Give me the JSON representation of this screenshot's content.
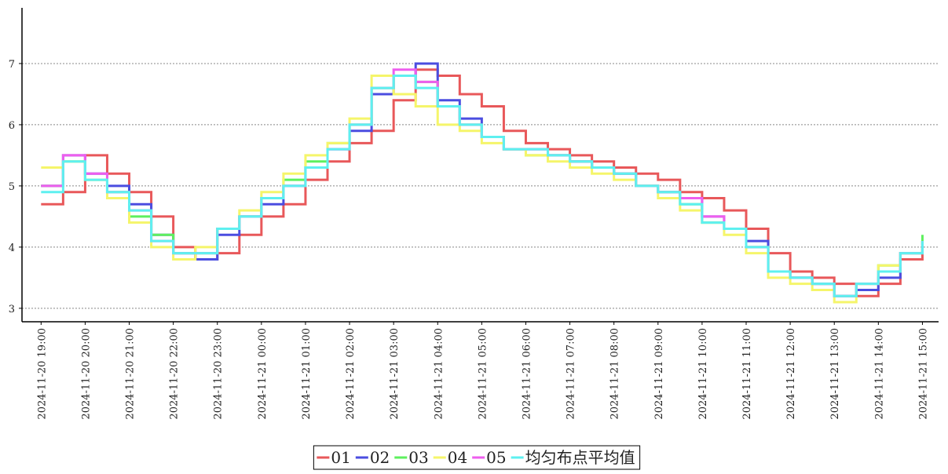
{
  "chart_data": {
    "type": "step-line",
    "x": [
      "2024-11-20 19:00",
      "2024-11-20 19:30",
      "2024-11-20 20:00",
      "2024-11-20 20:30",
      "2024-11-20 21:00",
      "2024-11-20 21:30",
      "2024-11-20 22:00",
      "2024-11-20 22:30",
      "2024-11-20 23:00",
      "2024-11-20 23:30",
      "2024-11-21 00:00",
      "2024-11-21 00:30",
      "2024-11-21 01:00",
      "2024-11-21 01:30",
      "2024-11-21 02:00",
      "2024-11-21 02:30",
      "2024-11-21 03:00",
      "2024-11-21 03:30",
      "2024-11-21 04:00",
      "2024-11-21 04:30",
      "2024-11-21 05:00",
      "2024-11-21 05:30",
      "2024-11-21 06:00",
      "2024-11-21 06:30",
      "2024-11-21 07:00",
      "2024-11-21 07:30",
      "2024-11-21 08:00",
      "2024-11-21 08:30",
      "2024-11-21 09:00",
      "2024-11-21 09:30",
      "2024-11-21 10:00",
      "2024-11-21 10:30",
      "2024-11-21 11:00",
      "2024-11-21 11:30",
      "2024-11-21 12:00",
      "2024-11-21 12:30",
      "2024-11-21 13:00",
      "2024-11-21 13:30",
      "2024-11-21 14:00",
      "2024-11-21 14:30",
      "2024-11-21 15:00"
    ],
    "series": [
      {
        "name": "01",
        "color": "#e8585a",
        "values": [
          4.7,
          4.9,
          5.5,
          5.2,
          4.9,
          4.5,
          4.0,
          3.8,
          3.9,
          4.2,
          4.5,
          4.7,
          5.1,
          5.4,
          5.7,
          5.9,
          6.4,
          6.9,
          6.8,
          6.5,
          6.3,
          5.9,
          5.7,
          5.6,
          5.5,
          5.4,
          5.3,
          5.2,
          5.1,
          4.9,
          4.8,
          4.6,
          4.3,
          3.9,
          3.6,
          3.5,
          3.4,
          3.2,
          3.4,
          3.8,
          4.1
        ]
      },
      {
        "name": "02",
        "color": "#4b4de0",
        "values": [
          5.0,
          5.5,
          5.2,
          5.0,
          4.7,
          4.2,
          3.9,
          3.8,
          4.2,
          4.5,
          4.7,
          5.0,
          5.3,
          5.6,
          5.9,
          6.5,
          6.8,
          7.0,
          6.4,
          6.1,
          5.8,
          5.6,
          5.6,
          5.5,
          5.4,
          5.3,
          5.2,
          5.0,
          4.9,
          4.8,
          4.5,
          4.3,
          4.1,
          3.6,
          3.5,
          3.4,
          3.2,
          3.3,
          3.5,
          3.9,
          4.1
        ]
      },
      {
        "name": "03",
        "color": "#5ef05e",
        "values": [
          5.0,
          5.4,
          5.1,
          4.9,
          4.5,
          4.2,
          3.9,
          3.9,
          4.3,
          4.5,
          4.8,
          5.1,
          5.4,
          5.7,
          6.0,
          6.6,
          6.8,
          6.7,
          6.3,
          6.0,
          5.8,
          5.6,
          5.5,
          5.5,
          5.4,
          5.3,
          5.2,
          5.0,
          4.9,
          4.7,
          4.4,
          4.3,
          4.0,
          3.6,
          3.5,
          3.4,
          3.2,
          3.4,
          3.7,
          3.9,
          4.2
        ]
      },
      {
        "name": "04",
        "color": "#f5f56a",
        "values": [
          5.3,
          5.4,
          5.1,
          4.8,
          4.4,
          4.0,
          3.8,
          4.0,
          4.3,
          4.6,
          4.9,
          5.2,
          5.5,
          5.7,
          6.1,
          6.8,
          6.5,
          6.3,
          6.0,
          5.9,
          5.7,
          5.6,
          5.5,
          5.4,
          5.3,
          5.2,
          5.1,
          5.0,
          4.8,
          4.6,
          4.4,
          4.2,
          3.9,
          3.5,
          3.4,
          3.3,
          3.1,
          3.4,
          3.7,
          3.9,
          4.1
        ]
      },
      {
        "name": "05",
        "color": "#ee5eee",
        "values": [
          5.0,
          5.5,
          5.2,
          4.9,
          4.6,
          4.1,
          3.9,
          3.9,
          4.3,
          4.5,
          4.8,
          5.0,
          5.3,
          5.6,
          6.0,
          6.6,
          6.9,
          6.7,
          6.3,
          6.0,
          5.8,
          5.6,
          5.6,
          5.5,
          5.4,
          5.3,
          5.2,
          5.0,
          4.9,
          4.8,
          4.5,
          4.3,
          4.0,
          3.6,
          3.5,
          3.4,
          3.2,
          3.4,
          3.6,
          3.9,
          4.1
        ]
      },
      {
        "name": "均匀布点平均值",
        "color": "#5ef0f0",
        "values": [
          4.9,
          5.4,
          5.1,
          4.9,
          4.6,
          4.1,
          3.9,
          3.9,
          4.3,
          4.5,
          4.8,
          5.0,
          5.3,
          5.6,
          6.0,
          6.6,
          6.8,
          6.6,
          6.3,
          6.0,
          5.8,
          5.6,
          5.6,
          5.5,
          5.4,
          5.3,
          5.2,
          5.0,
          4.9,
          4.7,
          4.4,
          4.3,
          4.0,
          3.6,
          3.5,
          3.4,
          3.2,
          3.4,
          3.6,
          3.9,
          4.1
        ]
      }
    ],
    "xlim": [
      "2024-11-20 18:34",
      "2024-11-21 15:22"
    ],
    "xticks": [
      "2024-11-20 19:00",
      "2024-11-20 20:00",
      "2024-11-20 21:00",
      "2024-11-20 22:00",
      "2024-11-20 23:00",
      "2024-11-21 00:00",
      "2024-11-21 01:00",
      "2024-11-21 02:00",
      "2024-11-21 03:00",
      "2024-11-21 04:00",
      "2024-11-21 05:00",
      "2024-11-21 06:00",
      "2024-11-21 07:00",
      "2024-11-21 08:00",
      "2024-11-21 09:00",
      "2024-11-21 10:00",
      "2024-11-21 11:00",
      "2024-11-21 12:00",
      "2024-11-21 13:00",
      "2024-11-21 14:00",
      "2024-11-21 15:00"
    ],
    "ylim": [
      2.78,
      7.91
    ],
    "yticks": [
      3,
      4,
      5,
      6,
      7
    ],
    "grid": true,
    "legend": "bottom"
  }
}
